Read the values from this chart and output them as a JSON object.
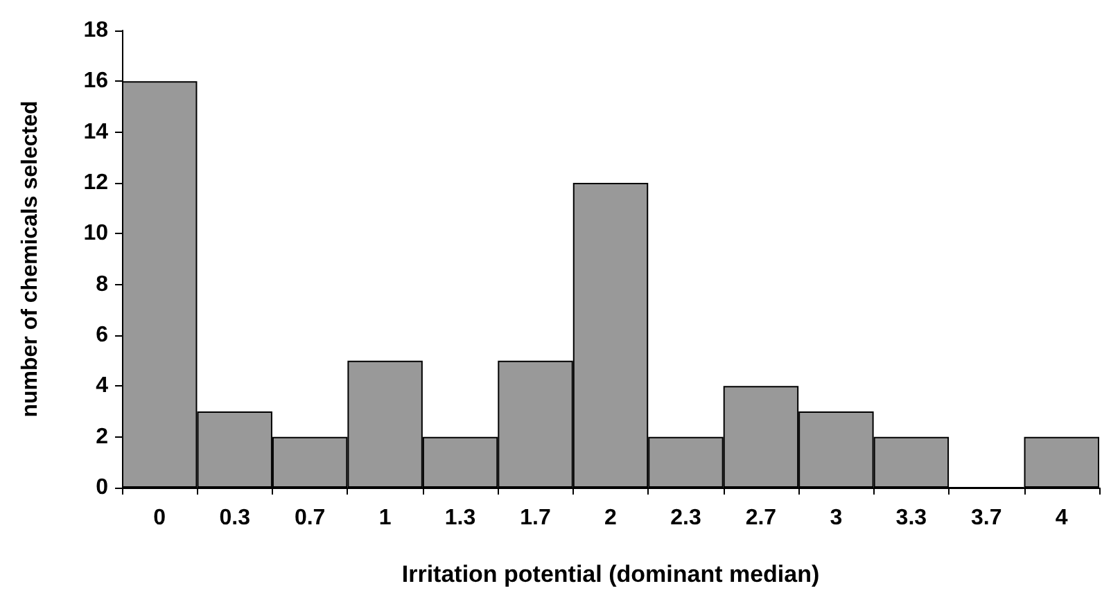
{
  "chart_data": {
    "type": "bar",
    "xlabel": "Irritation potential (dominant median)",
    "ylabel": "number of chemicals selected",
    "categories": [
      "0",
      "0.3",
      "0.7",
      "1",
      "1.3",
      "1.7",
      "2",
      "2.3",
      "2.7",
      "3",
      "3.3",
      "3.7",
      "4"
    ],
    "values": [
      16,
      3,
      2,
      5,
      2,
      5,
      12,
      2,
      4,
      3,
      2,
      0,
      2
    ],
    "color": "#999999",
    "ylim": [
      0,
      18
    ],
    "yticks": [
      0,
      2,
      4,
      6,
      8,
      10,
      12,
      14,
      16,
      18
    ],
    "grid": false
  }
}
